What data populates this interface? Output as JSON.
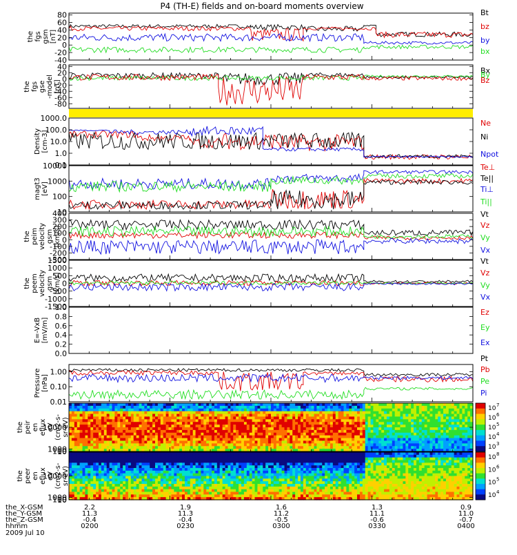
{
  "title": "P4 (TH-E) fields and on-board moments overview",
  "colors": {
    "black": "#000000",
    "red": "#e00000",
    "green": "#22dd22",
    "blue": "#1010e0",
    "yellow": "#ffee00"
  },
  "footer": {
    "row_labels": [
      "the_X-GSM",
      "the_Y-GSM",
      "the_Z-GSM",
      "hhmm",
      "2009 Jul 10"
    ],
    "columns": [
      [
        "2.2",
        "11.3",
        "-0.4",
        "0200"
      ],
      [
        "1.9",
        "11.3",
        "-0.4",
        "0230"
      ],
      [
        "1.6",
        "11.2",
        "-0.5",
        "0300"
      ],
      [
        "1.3",
        "11.1",
        "-0.6",
        "0330"
      ],
      [
        "0.9",
        "11.0",
        "-0.7",
        "0400"
      ]
    ]
  },
  "chart_data": [
    {
      "type": "line",
      "ylabel": [
        "the",
        "fgs",
        "gsm",
        "[nT]"
      ],
      "yticks": [
        "80",
        "60",
        "40",
        "20",
        "0",
        "-20",
        "-40"
      ],
      "ylim": [
        -40,
        85
      ],
      "legend": [
        "Bt",
        "bz",
        "by",
        "bx"
      ],
      "series": [
        {
          "name": "Bt",
          "color": "black",
          "segments": [
            [
              0.0,
              0.45,
              45,
              55
            ],
            [
              0.45,
              0.58,
              40,
              55
            ],
            [
              0.58,
              0.73,
              35,
              50
            ],
            [
              0.73,
              0.76,
              50,
              55
            ],
            [
              0.76,
              1.0,
              22,
              35
            ]
          ]
        },
        {
          "name": "bz",
          "color": "red",
          "segments": [
            [
              0.0,
              0.45,
              38,
              50
            ],
            [
              0.45,
              0.58,
              10,
              45
            ],
            [
              0.58,
              0.76,
              40,
              48
            ],
            [
              0.76,
              1.0,
              20,
              35
            ]
          ]
        },
        {
          "name": "by",
          "color": "blue",
          "segments": [
            [
              0.0,
              0.73,
              10,
              30
            ],
            [
              0.73,
              1.0,
              2,
              10
            ]
          ]
        },
        {
          "name": "bx",
          "color": "green",
          "segments": [
            [
              0.0,
              0.73,
              -20,
              -5
            ],
            [
              0.73,
              1.0,
              -10,
              0
            ]
          ]
        }
      ]
    },
    {
      "type": "line",
      "ylabel": [
        "the",
        "fgs",
        "gse",
        "-model",
        "[nT]"
      ],
      "yticks": [
        "40",
        "20",
        "0",
        "-20",
        "-40",
        "-60",
        "-80"
      ],
      "ylim": [
        -95,
        45
      ],
      "legend": [
        "Bx",
        "By",
        "Bz"
      ],
      "series": [
        {
          "name": "Bx",
          "color": "black",
          "segments": [
            [
              0.0,
              0.37,
              0,
              20
            ],
            [
              0.37,
              0.58,
              -20,
              20
            ],
            [
              0.58,
              0.73,
              5,
              20
            ],
            [
              0.73,
              1.0,
              0,
              10
            ]
          ]
        },
        {
          "name": "By",
          "color": "green",
          "segments": [
            [
              0.0,
              0.73,
              -5,
              10
            ],
            [
              0.73,
              1.0,
              5,
              12
            ]
          ]
        },
        {
          "name": "Bz",
          "color": "red",
          "segments": [
            [
              0.0,
              0.37,
              -5,
              15
            ],
            [
              0.37,
              0.58,
              -85,
              10
            ],
            [
              0.58,
              0.73,
              -5,
              15
            ],
            [
              0.73,
              1.0,
              -5,
              8
            ]
          ]
        }
      ]
    },
    {
      "type": "bar",
      "label": "status flag"
    },
    {
      "type": "line",
      "scale": "log",
      "ylabel": [
        "Density",
        "[cm-3]"
      ],
      "yticks": [
        "1000.0",
        "100.0",
        "10.0",
        "1.0",
        "0.1"
      ],
      "ylim": [
        0.1,
        1000
      ],
      "legend": [
        "Ne",
        "Ni",
        "Npot"
      ],
      "series": [
        {
          "name": "Ne",
          "color": "red",
          "segments": [
            [
              0.0,
              0.17,
              20,
              80
            ],
            [
              0.17,
              0.3,
              10,
              40
            ],
            [
              0.3,
              0.38,
              3,
              20
            ],
            [
              0.38,
              0.52,
              2,
              60
            ],
            [
              0.52,
              0.73,
              1.5,
              40
            ],
            [
              0.73,
              1.0,
              0.3,
              0.8
            ]
          ]
        },
        {
          "name": "Ni",
          "color": "black",
          "segments": [
            [
              0.0,
              0.73,
              2,
              60
            ],
            [
              0.73,
              1.0,
              0.4,
              0.8
            ]
          ]
        },
        {
          "name": "Npot",
          "color": "blue",
          "segments": [
            [
              0.0,
              0.1,
              80,
              100
            ],
            [
              0.1,
              0.3,
              40,
              100
            ],
            [
              0.3,
              0.48,
              30,
              200
            ],
            [
              0.48,
              0.73,
              1.5,
              3
            ],
            [
              0.73,
              1.0,
              0.4,
              0.6
            ]
          ]
        }
      ]
    },
    {
      "type": "line",
      "scale": "log",
      "ylabel": [
        "magt3",
        "[eV]"
      ],
      "yticks": [
        "10000",
        "1000",
        "100",
        "10"
      ],
      "ylim": [
        10,
        10000
      ],
      "legend": [
        "Te⊥",
        "Te||",
        "Ti⊥",
        "Ti||"
      ],
      "series": [
        {
          "name": "Ti⊥",
          "color": "blue",
          "segments": [
            [
              0.0,
              0.5,
              300,
              1500
            ],
            [
              0.5,
              0.73,
              800,
              3000
            ],
            [
              0.73,
              1.0,
              3000,
              5000
            ]
          ]
        },
        {
          "name": "Ti||",
          "color": "green",
          "segments": [
            [
              0.0,
              0.5,
              200,
              1000
            ],
            [
              0.5,
              0.73,
              600,
              2000
            ],
            [
              0.73,
              1.0,
              1500,
              3000
            ]
          ]
        },
        {
          "name": "Te⊥",
          "color": "red",
          "segments": [
            [
              0.0,
              0.5,
              15,
              60
            ],
            [
              0.5,
              0.73,
              15,
              300
            ],
            [
              0.73,
              1.0,
              700,
              1500
            ]
          ]
        },
        {
          "name": "Te||",
          "color": "black",
          "segments": [
            [
              0.0,
              0.5,
              15,
              50
            ],
            [
              0.5,
              0.73,
              15,
              250
            ],
            [
              0.73,
              1.0,
              600,
              1200
            ]
          ]
        }
      ]
    },
    {
      "type": "line",
      "ylabel": [
        "the",
        "peim",
        "velocity",
        "gsm",
        "[km/s]"
      ],
      "yticks": [
        "400",
        "300",
        "200",
        "100",
        "0",
        "-100",
        "-200",
        "-300"
      ],
      "ylim": [
        -300,
        400
      ],
      "legend": [
        "Vt",
        "Vz",
        "Vy",
        "Vx"
      ],
      "series": [
        {
          "name": "Vt",
          "color": "black",
          "segments": [
            [
              0.0,
              0.73,
              150,
              300
            ],
            [
              0.73,
              1.0,
              60,
              150
            ]
          ]
        },
        {
          "name": "Vz",
          "color": "red",
          "segments": [
            [
              0.0,
              0.73,
              20,
              120
            ],
            [
              0.73,
              1.0,
              0,
              60
            ]
          ]
        },
        {
          "name": "Vy",
          "color": "green",
          "segments": [
            [
              0.0,
              0.73,
              50,
              200
            ],
            [
              0.73,
              1.0,
              20,
              80
            ]
          ]
        },
        {
          "name": "Vx",
          "color": "blue",
          "segments": [
            [
              0.0,
              0.73,
              -220,
              0
            ],
            [
              0.73,
              1.0,
              -60,
              20
            ]
          ]
        }
      ]
    },
    {
      "type": "line",
      "ylabel": [
        "the",
        "peem",
        "velocity",
        "gsm",
        "[km/s]"
      ],
      "yticks": [
        "1500",
        "1000",
        "500",
        "0",
        "-500",
        "-1000",
        "-1500"
      ],
      "ylim": [
        -1500,
        1500
      ],
      "legend": [
        "Vt",
        "Vz",
        "Vy",
        "Vx"
      ],
      "series": [
        {
          "name": "Vt",
          "color": "black",
          "segments": [
            [
              0.0,
              0.73,
              100,
              600
            ],
            [
              0.73,
              1.0,
              30,
              200
            ]
          ]
        },
        {
          "name": "Vz",
          "color": "red",
          "segments": [
            [
              0.0,
              0.73,
              -150,
              200
            ],
            [
              0.73,
              1.0,
              -50,
              80
            ]
          ]
        },
        {
          "name": "Vy",
          "color": "green",
          "segments": [
            [
              0.0,
              0.73,
              -100,
              150
            ],
            [
              0.73,
              1.0,
              -40,
              60
            ]
          ]
        },
        {
          "name": "Vx",
          "color": "blue",
          "segments": [
            [
              0.0,
              0.73,
              -500,
              0
            ],
            [
              0.73,
              1.0,
              -100,
              30
            ]
          ]
        }
      ]
    },
    {
      "type": "line",
      "ylabel": [
        "E=-VxB",
        "[mV/m]"
      ],
      "yticks": [
        "1.0",
        "0.8",
        "0.6",
        "0.4",
        "0.2",
        "0.0"
      ],
      "ylim": [
        0,
        1
      ],
      "legend": [
        "Ez",
        "Ey",
        "Ex"
      ],
      "series": []
    },
    {
      "type": "line",
      "scale": "log",
      "ylabel": [
        "Pressure",
        "[nPa]"
      ],
      "yticks": [
        "1.00",
        "0.10",
        "0.01"
      ],
      "ylim": [
        0.01,
        3
      ],
      "legend": [
        "Pt",
        "Pb",
        "Pe",
        "Pi"
      ],
      "series": [
        {
          "name": "Pt",
          "color": "black",
          "segments": [
            [
              0.0,
              0.73,
              1.0,
              1.6
            ],
            [
              0.73,
              1.0,
              0.5,
              0.8
            ]
          ]
        },
        {
          "name": "Pb",
          "color": "red",
          "segments": [
            [
              0.0,
              0.37,
              0.6,
              1.2
            ],
            [
              0.37,
              0.58,
              0.05,
              1.0
            ],
            [
              0.58,
              0.73,
              0.6,
              1.0
            ],
            [
              0.73,
              1.0,
              0.2,
              0.5
            ]
          ]
        },
        {
          "name": "Pi",
          "color": "blue",
          "segments": [
            [
              0.0,
              0.73,
              0.2,
              0.7
            ],
            [
              0.73,
              1.0,
              0.3,
              0.5
            ]
          ]
        },
        {
          "name": "Pe",
          "color": "green",
          "segments": [
            [
              0.0,
              0.73,
              0.015,
              0.06
            ],
            [
              0.73,
              1.0,
              0.06,
              0.09
            ]
          ]
        }
      ]
    },
    {
      "type": "heatmap",
      "ylabel": [
        "the",
        "peir",
        "en",
        "eflux",
        "eV",
        "(cm2-s-",
        "sr-eV)"
      ],
      "yticks": [
        "10000",
        "1000",
        "100",
        "10"
      ],
      "ylim": [
        10,
        20000
      ],
      "colorbar": {
        "ticks": [
          "10",
          "10",
          "10",
          "10",
          "10"
        ],
        "exponents": [
          "7",
          "6",
          "5",
          "4",
          "3"
        ]
      }
    },
    {
      "type": "heatmap",
      "ylabel": [
        "the",
        "peer",
        "en",
        "eflux",
        "eV",
        "(cm2-s-",
        "sr-eV)"
      ],
      "yticks": [
        "10000",
        "1000",
        "100",
        "10"
      ],
      "ylim": [
        10,
        20000
      ],
      "colorbar": {
        "ticks": [
          "10",
          "10",
          "10",
          "10"
        ],
        "exponents": [
          "8",
          "6",
          "5",
          "4"
        ]
      }
    }
  ]
}
